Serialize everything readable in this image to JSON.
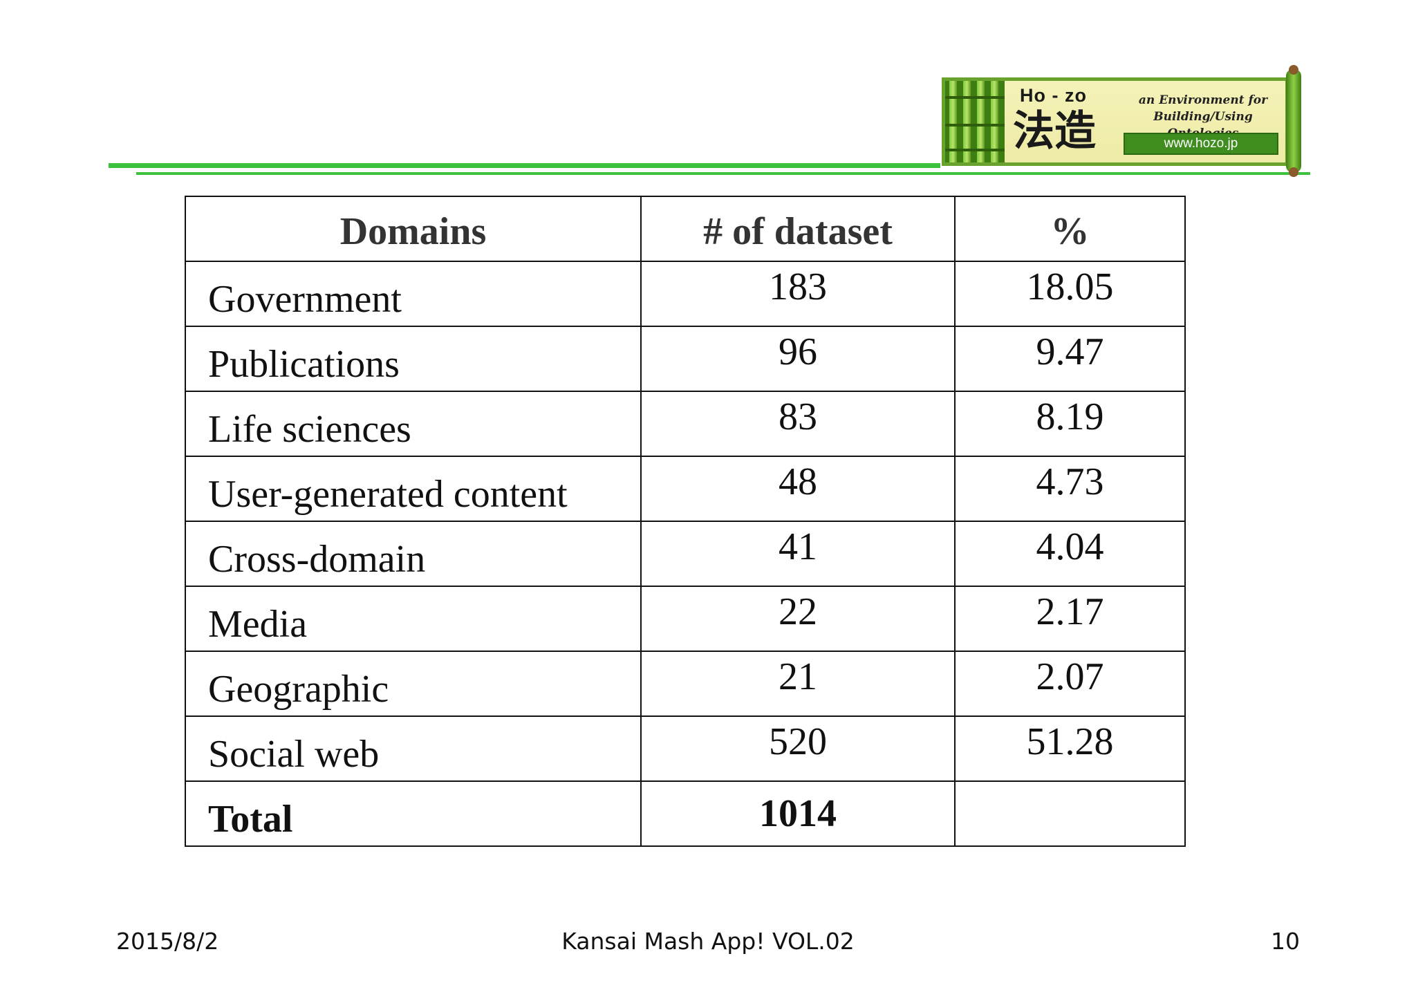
{
  "logo": {
    "roman": "Ho - zo",
    "kanji": "法造",
    "tagline": "an Environment for Building/Using Ontologies",
    "url": "www.hozo.jp",
    "brand_color": "#3f8d1f"
  },
  "table": {
    "headers": [
      "Domains",
      "# of dataset",
      "%"
    ],
    "rows": [
      {
        "domain": "Government",
        "count": "183",
        "percent": "18.05"
      },
      {
        "domain": "Publications",
        "count": "96",
        "percent": "9.47"
      },
      {
        "domain": "Life sciences",
        "count": "83",
        "percent": "8.19"
      },
      {
        "domain": "User-generated content",
        "count": "48",
        "percent": "4.73"
      },
      {
        "domain": "Cross-domain",
        "count": "41",
        "percent": "4.04"
      },
      {
        "domain": "Media",
        "count": "22",
        "percent": "2.17"
      },
      {
        "domain": "Geographic",
        "count": "21",
        "percent": "2.07"
      },
      {
        "domain": "Social web",
        "count": "520",
        "percent": "51.28"
      }
    ],
    "total": {
      "label": "Total",
      "count": "1014",
      "percent": ""
    }
  },
  "footer": {
    "date": "2015/8/2",
    "title": "Kansai Mash App! VOL.02",
    "page": "10"
  },
  "accent_color": "#3cc23c"
}
